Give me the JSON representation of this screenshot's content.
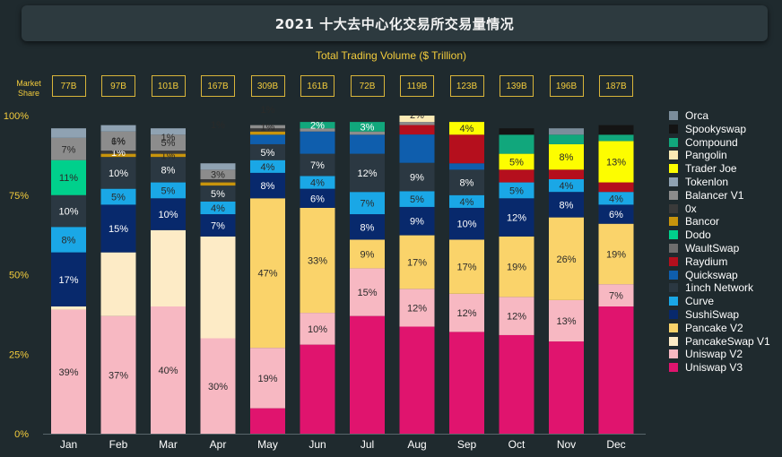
{
  "chart_data": {
    "type": "bar",
    "stacked": true,
    "title": "2021 十大去中心化交易所交易量情况",
    "subtitle": "Total Trading Volume ($ Trillion)",
    "market_share_label": "Market Share",
    "categories": [
      "Jan",
      "Feb",
      "Mar",
      "Apr",
      "May",
      "Jun",
      "Jul",
      "Aug",
      "Sep",
      "Oct",
      "Nov",
      "Dec"
    ],
    "volumes": [
      "77B",
      "97B",
      "101B",
      "167B",
      "309B",
      "161B",
      "72B",
      "119B",
      "123B",
      "139B",
      "196B",
      "187B"
    ],
    "y_ticks": [
      "0%",
      "25%",
      "50%",
      "75%",
      "100%"
    ],
    "ylim": [
      0,
      100
    ],
    "legend_position": "right",
    "series": [
      {
        "name": "Uniswap V3",
        "color": "#e0146e",
        "values": [
          0,
          0,
          0,
          0,
          8,
          28,
          37,
          34,
          32,
          31,
          29,
          40
        ],
        "labels": [
          "",
          "",
          "",
          "",
          "",
          "",
          "",
          "",
          "",
          "",
          "",
          ""
        ]
      },
      {
        "name": "Uniswap V2",
        "color": "#f7b8c2",
        "values": [
          39,
          37,
          40,
          30,
          19,
          10,
          15,
          12,
          12,
          12,
          13,
          7
        ],
        "labels": [
          "39%",
          "37%",
          "40%",
          "30%",
          "19%",
          "10%",
          "15%",
          "12%",
          "12%",
          "12%",
          "13%",
          "7%"
        ]
      },
      {
        "name": "PancakeSwap V1",
        "color": "#fdebc6",
        "values": [
          1,
          20,
          24,
          32,
          0,
          0,
          0,
          0,
          0,
          0,
          0,
          0
        ],
        "labels": [
          "",
          "",
          "",
          "",
          "",
          "",
          "",
          "",
          "",
          "",
          "",
          ""
        ]
      },
      {
        "name": "Pancake V2",
        "color": "#fad36a",
        "values": [
          0,
          0,
          0,
          0,
          47,
          33,
          9,
          17,
          17,
          19,
          26,
          19
        ],
        "labels": [
          "",
          "",
          "",
          "",
          "47%",
          "33%",
          "9%",
          "17%",
          "17%",
          "19%",
          "26%",
          "19%"
        ]
      },
      {
        "name": "SushiSwap",
        "color": "#08296c",
        "values": [
          17,
          15,
          10,
          7,
          8,
          6,
          8,
          9,
          10,
          12,
          8,
          6
        ],
        "labels": [
          "17%",
          "15%",
          "10%",
          "7%",
          "8%",
          "6%",
          "8%",
          "9%",
          "10%",
          "12%",
          "8%",
          "6%"
        ]
      },
      {
        "name": "Curve",
        "color": "#1aa7e6",
        "values": [
          8,
          5,
          5,
          4,
          4,
          4,
          7,
          5,
          4,
          5,
          4,
          4
        ],
        "labels": [
          "8%",
          "5%",
          "5%",
          "4%",
          "4%",
          "4%",
          "7%",
          "5%",
          "4%",
          "5%",
          "4%",
          "4%"
        ]
      },
      {
        "name": "1inch Network",
        "color": "#2b3842",
        "values": [
          10,
          10,
          8,
          5,
          5,
          7,
          12,
          9,
          8,
          0,
          0,
          0
        ],
        "labels": [
          "10%",
          "10%",
          "8%",
          "5%",
          "5%",
          "7%",
          "12%",
          "9%",
          "8%",
          "",
          "",
          ""
        ]
      },
      {
        "name": "Quickswap",
        "color": "#0f5ead",
        "values": [
          0,
          0,
          0,
          0,
          3,
          7,
          6,
          9,
          2,
          0,
          0,
          0
        ],
        "labels": [
          "",
          "",
          "",
          "",
          "",
          "",
          "",
          "",
          "",
          "",
          "",
          ""
        ]
      },
      {
        "name": "Raydium",
        "color": "#b50f1d",
        "values": [
          0,
          0,
          0,
          0,
          0,
          0,
          0,
          3,
          9,
          4,
          3,
          3
        ],
        "labels": [
          "",
          "",
          "",
          "",
          "",
          "",
          "",
          "",
          "",
          "",
          "",
          ""
        ]
      },
      {
        "name": "WaultSwap",
        "color": "#6e6e6e",
        "values": [
          0,
          0,
          0,
          0,
          0,
          0,
          0,
          0,
          0,
          0,
          0,
          0
        ],
        "labels": [
          "",
          "",
          "",
          "",
          "",
          "",
          "",
          "",
          "",
          "",
          "",
          ""
        ]
      },
      {
        "name": "Dodo",
        "color": "#00d08c",
        "values": [
          11,
          0,
          0,
          0,
          0,
          0,
          0,
          0,
          0,
          0,
          0,
          0
        ],
        "labels": [
          "11%",
          "",
          "",
          "",
          "",
          "",
          "",
          "",
          "",
          "",
          "",
          ""
        ]
      },
      {
        "name": "Bancor",
        "color": "#c8940c",
        "values": [
          0,
          1,
          1,
          1,
          1,
          0,
          0,
          0,
          0,
          0,
          0,
          0
        ],
        "labels": [
          "",
          "",
          "1%",
          "",
          "",
          "",
          "",
          "",
          "",
          "",
          "",
          ""
        ]
      },
      {
        "name": "0x",
        "color": "#3a3a3a",
        "values": [
          0,
          1,
          1,
          1,
          1,
          0,
          0,
          0,
          0,
          0,
          0,
          0
        ],
        "labels": [
          "",
          "1%",
          "",
          "",
          "",
          "",
          "",
          "",
          "",
          "",
          "",
          ""
        ]
      },
      {
        "name": "Balancer V1",
        "color": "#8c8c8c",
        "values": [
          7,
          6,
          5,
          3,
          1,
          1,
          1,
          1,
          0,
          0,
          0,
          0
        ],
        "labels": [
          "7%",
          "6%",
          "5%",
          "3%",
          "1%",
          "",
          "",
          "",
          "",
          "",
          "",
          ""
        ]
      },
      {
        "name": "Tokenlon",
        "color": "#8fa2b2",
        "values": [
          3,
          2,
          2,
          2,
          0,
          0,
          0,
          0,
          0,
          0,
          0,
          0
        ],
        "labels": [
          "",
          "",
          "",
          "",
          "",
          "",
          "",
          "",
          "",
          "",
          "",
          ""
        ]
      },
      {
        "name": "Trader Joe",
        "color": "#fdfd00",
        "values": [
          0,
          0,
          0,
          0,
          0,
          0,
          0,
          0,
          4,
          5,
          8,
          13
        ],
        "labels": [
          "",
          "",
          "",
          "",
          "",
          "",
          "",
          "",
          "4%",
          "5%",
          "8%",
          "13%"
        ]
      },
      {
        "name": "Pangolin",
        "color": "#fbeab5",
        "values": [
          0,
          0,
          0,
          0,
          0,
          0,
          0,
          2,
          0,
          0,
          0,
          0
        ],
        "labels": [
          "",
          "",
          "",
          "",
          "",
          "",
          "",
          "",
          "",
          "",
          "",
          ""
        ]
      },
      {
        "name": "Compound",
        "color": "#11a77c",
        "values": [
          0,
          0,
          0,
          0,
          0,
          2,
          3,
          0,
          0,
          6,
          3,
          2
        ],
        "labels": [
          "",
          "",
          "",
          "",
          "",
          "2%",
          "3%",
          "",
          "",
          "",
          "",
          ""
        ]
      },
      {
        "name": "Spookyswap",
        "color": "#141414",
        "values": [
          0,
          0,
          0,
          0,
          0,
          0,
          0,
          0,
          0,
          2,
          0,
          3
        ],
        "labels": [
          "",
          "",
          "",
          "",
          "",
          "",
          "",
          "",
          "",
          "",
          "",
          ""
        ]
      },
      {
        "name": "Orca",
        "color": "#7b8d9b",
        "values": [
          0,
          0,
          0,
          0,
          0,
          0,
          0,
          0,
          0,
          0,
          2,
          0
        ],
        "labels": [
          "",
          "",
          "",
          "",
          "",
          "",
          "",
          "",
          "",
          "",
          "",
          ""
        ]
      }
    ],
    "extra_labels": [
      {
        "category": "Feb",
        "text": "1%"
      },
      {
        "category": "Mar",
        "text": "1%"
      },
      {
        "category": "Apr",
        "text": "1%"
      },
      {
        "category": "May",
        "text": "1%"
      },
      {
        "category": "Aug",
        "text": "2%"
      }
    ],
    "legend": [
      "Orca",
      "Spookyswap",
      "Compound",
      "Pangolin",
      "Trader Joe",
      "Tokenlon",
      "Balancer V1",
      "0x",
      "Bancor",
      "Dodo",
      "WaultSwap",
      "Raydium",
      "Quickswap",
      "1inch Network",
      "Curve",
      "SushiSwap",
      "Pancake V2",
      "PancakeSwap V1",
      "Uniswap V2",
      "Uniswap V3"
    ]
  }
}
